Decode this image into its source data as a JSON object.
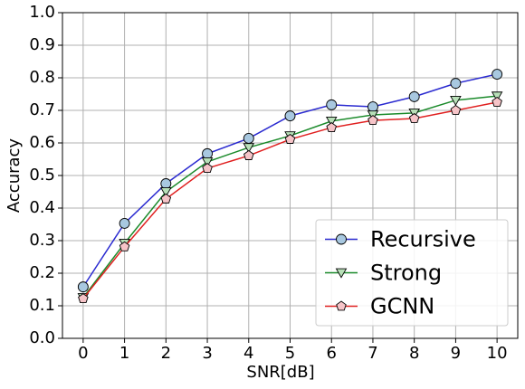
{
  "chart_data": {
    "type": "line",
    "x_label": "SNR[dB]",
    "y_label": "Accuracy",
    "x": [
      0,
      1,
      2,
      3,
      4,
      5,
      6,
      7,
      8,
      9,
      10
    ],
    "series": [
      {
        "name": "Recursive",
        "color": "#2a2ad0",
        "marker": "circle",
        "values": [
          0.158,
          0.353,
          0.475,
          0.567,
          0.614,
          0.683,
          0.717,
          0.711,
          0.742,
          0.783,
          0.811
        ]
      },
      {
        "name": "Strong",
        "color": "#1a8a2a",
        "marker": "triangle-down",
        "values": [
          0.125,
          0.292,
          0.45,
          0.542,
          0.586,
          0.622,
          0.667,
          0.686,
          0.692,
          0.731,
          0.744
        ]
      },
      {
        "name": "GCNN",
        "color": "#e02020",
        "marker": "pentagon",
        "values": [
          0.122,
          0.281,
          0.428,
          0.522,
          0.561,
          0.611,
          0.647,
          0.669,
          0.675,
          0.7,
          0.725
        ]
      }
    ],
    "xlim": [
      -0.5,
      10.5
    ],
    "xticks": [
      0,
      1,
      2,
      3,
      4,
      5,
      6,
      7,
      8,
      9,
      10
    ],
    "ylim": [
      0,
      1
    ],
    "yticks": [
      {
        "value": 0,
        "label": "0.0"
      },
      0.1,
      0.2,
      0.3,
      0.4,
      0.5,
      0.6,
      0.7,
      0.8,
      0.9,
      {
        "value": 1,
        "label": "1.0"
      }
    ],
    "grid": true,
    "legend": "lower right"
  }
}
